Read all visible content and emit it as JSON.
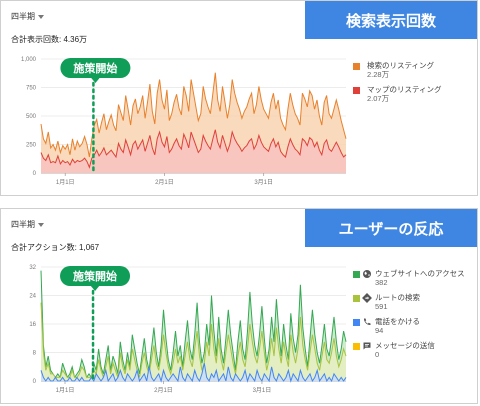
{
  "panel1": {
    "period_label": "四半期",
    "total_label": "合計表示回数: 4.36万",
    "banner": "検索表示回数",
    "callout": "施策開始"
  },
  "panel2": {
    "period_label": "四半期",
    "total_label": "合計アクション数: 1,067",
    "banner": "ユーザーの反応",
    "callout": "施策開始"
  },
  "icons": {
    "website": "globe-icon",
    "route": "directions-icon",
    "call": "phone-icon",
    "message": "chat-bubble-icon"
  },
  "chart_data": [
    {
      "type": "area",
      "x_ticks": [
        "1月1日",
        "2月1日",
        "3月1日"
      ],
      "y_ticks": [
        "0",
        "250",
        "500",
        "750",
        "1,000"
      ],
      "ylim": [
        0,
        1000
      ],
      "marker_label": "施策開始",
      "marker_index": 20,
      "series": [
        {
          "name": "検索のリスティング",
          "total": "2.28万",
          "color": "#e8812c",
          "fill": "#f8d3b0",
          "values": [
            430,
            300,
            260,
            360,
            220,
            250,
            200,
            280,
            180,
            240,
            210,
            250,
            160,
            300,
            200,
            280,
            230,
            260,
            320,
            250,
            140,
            300,
            420,
            470,
            350,
            440,
            520,
            380,
            450,
            510,
            420,
            370,
            600,
            530,
            460,
            680,
            560,
            420,
            590,
            650,
            520,
            580,
            680,
            480,
            620,
            780,
            540,
            430,
            700,
            820,
            640,
            560,
            730,
            460,
            520,
            620,
            690,
            570,
            510,
            760,
            680,
            540,
            820,
            700,
            580,
            460,
            520,
            760,
            650,
            580,
            520,
            700,
            880,
            640,
            540,
            760,
            620,
            480,
            600,
            820,
            700,
            620,
            560,
            480,
            540,
            580,
            650,
            700,
            520,
            600,
            760,
            640,
            560,
            520,
            480,
            620,
            700,
            560,
            640,
            480,
            420,
            380,
            560,
            700,
            600,
            520,
            480,
            420,
            700,
            650,
            580,
            720,
            680,
            560,
            640,
            500,
            420,
            620,
            680,
            520,
            480,
            560,
            640,
            560,
            460,
            380,
            300
          ]
        },
        {
          "name": "マップのリスティング",
          "total": "2.07万",
          "color": "#e0403a",
          "fill": "#f8c2c0",
          "values": [
            180,
            130,
            110,
            160,
            90,
            100,
            90,
            150,
            80,
            110,
            90,
            100,
            70,
            120,
            90,
            110,
            100,
            110,
            130,
            100,
            50,
            130,
            160,
            200,
            150,
            180,
            220,
            160,
            180,
            200,
            170,
            140,
            260,
            210,
            180,
            290,
            230,
            160,
            250,
            280,
            210,
            250,
            290,
            190,
            260,
            330,
            220,
            160,
            300,
            360,
            270,
            230,
            320,
            180,
            210,
            260,
            300,
            240,
            210,
            340,
            290,
            220,
            360,
            300,
            240,
            180,
            210,
            330,
            280,
            240,
            210,
            300,
            380,
            270,
            220,
            330,
            260,
            190,
            250,
            360,
            300,
            260,
            230,
            190,
            220,
            240,
            280,
            300,
            210,
            250,
            330,
            270,
            230,
            210,
            190,
            260,
            300,
            230,
            270,
            190,
            160,
            140,
            230,
            300,
            250,
            210,
            190,
            160,
            300,
            280,
            240,
            310,
            290,
            230,
            270,
            200,
            160,
            260,
            290,
            210,
            190,
            230,
            270,
            230,
            180,
            140,
            160
          ]
        }
      ]
    },
    {
      "type": "area",
      "x_ticks": [
        "1月1日",
        "2月1日",
        "3月1日"
      ],
      "y_ticks": [
        "0",
        "8",
        "16",
        "24",
        "32"
      ],
      "ylim": [
        0,
        32
      ],
      "marker_label": "施策開始",
      "marker_index": 20,
      "series": [
        {
          "name": "ウェブサイトへのアクセス",
          "total": "382",
          "color": "#34a853",
          "fill": "#c6e8c6",
          "values": [
            31,
            10,
            4,
            7,
            3,
            2,
            1,
            2,
            1,
            5,
            3,
            1,
            2,
            4,
            1,
            2,
            3,
            6,
            4,
            1,
            2,
            1,
            5,
            3,
            9,
            4,
            2,
            6,
            10,
            3,
            7,
            5,
            2,
            11,
            6,
            3,
            8,
            4,
            13,
            9,
            5,
            2,
            7,
            12,
            6,
            3,
            9,
            15,
            8,
            4,
            10,
            20,
            12,
            6,
            3,
            8,
            14,
            7,
            10,
            4,
            11,
            17,
            9,
            6,
            13,
            22,
            11,
            5,
            8,
            16,
            10,
            24,
            14,
            7,
            18,
            9,
            5,
            12,
            20,
            13,
            8,
            3,
            11,
            17,
            9,
            6,
            14,
            25,
            16,
            10,
            7,
            13,
            21,
            12,
            5,
            9,
            18,
            11,
            23,
            14,
            7,
            16,
            10,
            6,
            19,
            12,
            8,
            13,
            27,
            15,
            9,
            4,
            12,
            20,
            13,
            8,
            5,
            10,
            16,
            9,
            7,
            12,
            18,
            11,
            6,
            9,
            14,
            11
          ]
        },
        {
          "name": "ルートの検索",
          "total": "591",
          "color": "#a9c33c",
          "fill": "#e6efc0",
          "values": [
            22,
            8,
            3,
            5,
            2,
            2,
            1,
            1,
            1,
            3,
            2,
            1,
            1,
            3,
            1,
            1,
            2,
            4,
            3,
            1,
            1,
            1,
            3,
            2,
            6,
            3,
            1,
            4,
            7,
            2,
            5,
            3,
            1,
            8,
            4,
            2,
            6,
            3,
            9,
            6,
            3,
            1,
            5,
            8,
            4,
            2,
            6,
            10,
            5,
            3,
            7,
            13,
            8,
            4,
            2,
            5,
            9,
            5,
            7,
            3,
            7,
            11,
            6,
            4,
            9,
            14,
            7,
            3,
            5,
            11,
            7,
            16,
            9,
            5,
            12,
            6,
            3,
            8,
            13,
            9,
            5,
            2,
            7,
            11,
            6,
            4,
            9,
            16,
            11,
            7,
            5,
            9,
            14,
            8,
            3,
            6,
            12,
            7,
            15,
            9,
            5,
            11,
            7,
            4,
            13,
            8,
            5,
            9,
            18,
            10,
            6,
            3,
            8,
            13,
            9,
            5,
            3,
            7,
            11,
            6,
            5,
            8,
            12,
            7,
            4,
            6,
            9,
            7
          ]
        },
        {
          "name": "電話をかける",
          "total": "94",
          "color": "#4285f4",
          "fill": "#c9dcfb",
          "values": [
            3,
            1,
            0,
            1,
            0,
            0,
            1,
            0,
            0,
            1,
            0,
            0,
            1,
            0,
            0,
            1,
            0,
            1,
            0,
            0,
            0,
            1,
            0,
            2,
            1,
            0,
            1,
            3,
            0,
            1,
            2,
            0,
            1,
            3,
            1,
            0,
            2,
            1,
            0,
            1,
            3,
            0,
            1,
            2,
            0,
            4,
            1,
            0,
            1,
            2,
            0,
            3,
            1,
            0,
            1,
            2,
            1,
            0,
            4,
            1,
            0,
            2,
            1,
            0,
            3,
            1,
            0,
            2,
            5,
            1,
            0,
            2,
            1,
            3,
            0,
            1,
            2,
            0,
            4,
            1,
            0,
            2,
            1,
            0,
            1,
            3,
            0,
            2,
            1,
            0,
            3,
            1,
            0,
            2,
            1,
            0,
            4,
            1,
            0,
            2,
            1,
            0,
            1,
            3,
            0,
            2,
            1,
            0,
            3,
            1,
            0,
            1,
            2,
            0,
            1,
            3,
            0,
            1,
            2,
            0,
            1,
            0,
            2,
            1,
            0,
            1,
            0,
            1
          ]
        },
        {
          "name": "メッセージの送信",
          "total": "0",
          "color": "#fbbc04",
          "fill": "none",
          "values": []
        }
      ]
    }
  ]
}
